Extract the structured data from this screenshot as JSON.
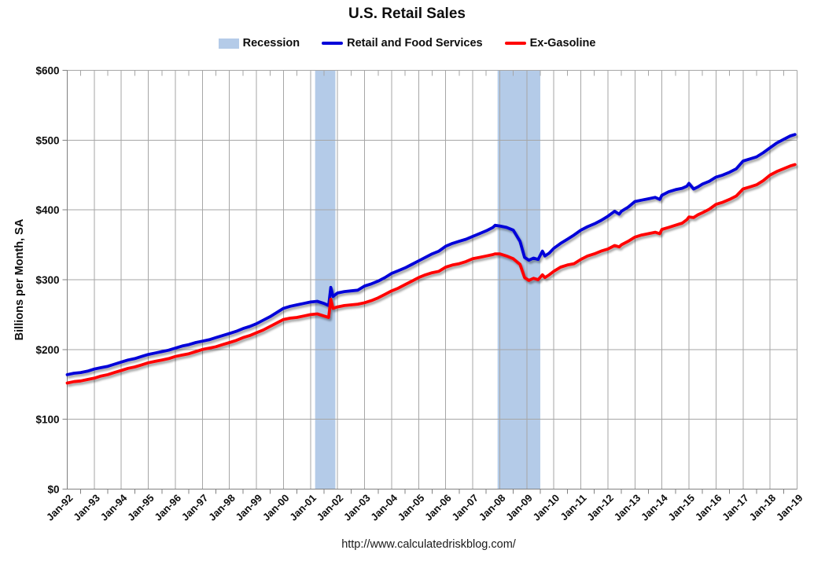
{
  "title": "U.S. Retail Sales",
  "footer_url": "http://www.calculatedriskblog.com/",
  "legend": {
    "items": [
      {
        "label": "Recession",
        "type": "box",
        "color": "#B4CBE8"
      },
      {
        "label": "Retail and Food Services",
        "type": "line",
        "color": "#0000D9"
      },
      {
        "label": "Ex-Gasoline",
        "type": "line",
        "color": "#FF0000"
      }
    ]
  },
  "chart_data": {
    "type": "line",
    "title": "U.S. Retail Sales",
    "xlabel": "",
    "ylabel": "Billions per Month, SA",
    "ylim": [
      0,
      600
    ],
    "ytick_step": 100,
    "ytick_labels": [
      "$0",
      "$100",
      "$200",
      "$300",
      "$400",
      "$500",
      "$600"
    ],
    "x_range": [
      1992,
      2019
    ],
    "xtick_labels": [
      "Jan-92",
      "Jan-93",
      "Jan-94",
      "Jan-95",
      "Jan-96",
      "Jan-97",
      "Jan-98",
      "Jan-99",
      "Jan-00",
      "Jan-01",
      "Jan-02",
      "Jan-03",
      "Jan-04",
      "Jan-05",
      "Jan-06",
      "Jan-07",
      "Jan-08",
      "Jan-09",
      "Jan-10",
      "Jan-11",
      "Jan-12",
      "Jan-13",
      "Jan-14",
      "Jan-15",
      "Jan-16",
      "Jan-17",
      "Jan-18",
      "Jan-19"
    ],
    "grid": "on",
    "legend_position": "top",
    "grid_color": "#A6A6A6",
    "axis_color": "#808080",
    "recession_color": "#B4CBE8",
    "recession_bands": [
      [
        2001.17,
        2001.92
      ],
      [
        2007.92,
        2009.5
      ]
    ],
    "x": [
      1992,
      1992.25,
      1992.5,
      1992.75,
      1993,
      1993.25,
      1993.5,
      1993.75,
      1994,
      1994.25,
      1994.5,
      1994.75,
      1995,
      1995.25,
      1995.5,
      1995.75,
      1996,
      1996.25,
      1996.5,
      1996.75,
      1997,
      1997.25,
      1997.5,
      1997.75,
      1998,
      1998.25,
      1998.5,
      1998.75,
      1999,
      1999.25,
      1999.5,
      1999.75,
      2000,
      2000.25,
      2000.5,
      2000.75,
      2001,
      2001.25,
      2001.5,
      2001.67,
      2001.75,
      2001.83,
      2002,
      2002.25,
      2002.5,
      2002.75,
      2003,
      2003.25,
      2003.5,
      2003.75,
      2004,
      2004.25,
      2004.5,
      2004.75,
      2005,
      2005.25,
      2005.5,
      2005.75,
      2006,
      2006.25,
      2006.5,
      2006.75,
      2007,
      2007.25,
      2007.5,
      2007.75,
      2007.83,
      2008,
      2008.25,
      2008.5,
      2008.75,
      2008.92,
      2009.08,
      2009.25,
      2009.42,
      2009.58,
      2009.67,
      2009.83,
      2010,
      2010.25,
      2010.5,
      2010.75,
      2011,
      2011.25,
      2011.5,
      2011.75,
      2012,
      2012.25,
      2012.42,
      2012.5,
      2012.75,
      2013,
      2013.25,
      2013.5,
      2013.75,
      2013.92,
      2014,
      2014.25,
      2014.5,
      2014.75,
      2014.92,
      2015,
      2015.17,
      2015.33,
      2015.5,
      2015.75,
      2016,
      2016.25,
      2016.5,
      2016.75,
      2017,
      2017.25,
      2017.5,
      2017.75,
      2018,
      2018.25,
      2018.5,
      2018.75,
      2018.92
    ],
    "series": [
      {
        "name": "Retail and Food Services",
        "color": "#0000D9",
        "values": [
          164,
          166,
          167,
          169,
          172,
          174,
          176,
          179,
          182,
          185,
          187,
          190,
          193,
          195,
          197,
          199,
          202,
          205,
          207,
          210,
          212,
          214,
          217,
          220,
          223,
          226,
          230,
          233,
          237,
          242,
          247,
          253,
          259,
          262,
          264,
          266,
          268,
          269,
          266,
          263,
          289,
          276,
          281,
          283,
          284,
          285,
          291,
          294,
          298,
          303,
          309,
          313,
          317,
          322,
          327,
          332,
          337,
          341,
          348,
          352,
          355,
          358,
          362,
          366,
          370,
          375,
          378,
          377,
          375,
          371,
          355,
          332,
          328,
          331,
          329,
          341,
          334,
          338,
          345,
          352,
          358,
          364,
          371,
          376,
          380,
          385,
          391,
          398,
          394,
          398,
          404,
          412,
          414,
          416,
          418,
          415,
          421,
          426,
          429,
          431,
          434,
          438,
          430,
          433,
          437,
          441,
          447,
          450,
          454,
          459,
          470,
          473,
          476,
          482,
          489,
          496,
          501,
          506,
          508
        ]
      },
      {
        "name": "Ex-Gasoline",
        "color": "#FF0000",
        "values": [
          152,
          154,
          155,
          157,
          159,
          162,
          164,
          167,
          170,
          173,
          175,
          178,
          181,
          183,
          185,
          187,
          190,
          192,
          194,
          197,
          200,
          202,
          204,
          207,
          210,
          213,
          217,
          220,
          224,
          228,
          233,
          238,
          243,
          245,
          246,
          248,
          250,
          251,
          248,
          246,
          272,
          259,
          261,
          263,
          264,
          265,
          267,
          270,
          274,
          279,
          284,
          288,
          293,
          298,
          303,
          307,
          310,
          312,
          318,
          321,
          323,
          326,
          330,
          332,
          334,
          336,
          337,
          337,
          334,
          330,
          322,
          303,
          299,
          302,
          300,
          307,
          303,
          307,
          312,
          318,
          321,
          323,
          329,
          334,
          337,
          341,
          344,
          349,
          347,
          350,
          355,
          361,
          364,
          366,
          368,
          366,
          372,
          375,
          378,
          381,
          386,
          390,
          389,
          393,
          396,
          401,
          408,
          411,
          415,
          420,
          430,
          433,
          436,
          442,
          450,
          455,
          459,
          463,
          465
        ]
      }
    ]
  }
}
